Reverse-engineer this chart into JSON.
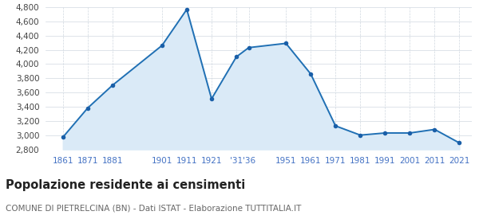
{
  "years": [
    1861,
    1871,
    1881,
    1901,
    1911,
    1921,
    1931,
    1936,
    1951,
    1961,
    1971,
    1981,
    1991,
    2001,
    2011,
    2021
  ],
  "population": [
    2971,
    3381,
    3701,
    4261,
    4768,
    3511,
    4101,
    4231,
    4291,
    3861,
    3131,
    3001,
    3031,
    3031,
    3081,
    2891
  ],
  "x_tick_positions": [
    1861,
    1871,
    1881,
    1901,
    1911,
    1921,
    1931,
    1936,
    1951,
    1961,
    1971,
    1981,
    1991,
    2001,
    2011,
    2021
  ],
  "x_tick_labels": [
    "1861",
    "1871",
    "1881",
    "1901",
    "1911",
    "1921",
    "'31",
    "'36",
    "1951",
    "1961",
    "1971",
    "1981",
    "1991",
    "2001",
    "2011",
    "2021"
  ],
  "line_color": "#2070b4",
  "fill_color": "#daeaf7",
  "marker_color": "#1a5fa8",
  "grid_color": "#d0d8e0",
  "background_color": "#ffffff",
  "ylim": [
    2800,
    4800
  ],
  "yticks": [
    2800,
    3000,
    3200,
    3400,
    3600,
    3800,
    4000,
    4200,
    4400,
    4600,
    4800
  ],
  "xlim_left": 1854,
  "xlim_right": 2026,
  "title": "Popolazione residente ai censimenti",
  "subtitle": "COMUNE DI PIETRELCINA (BN) - Dati ISTAT - Elaborazione TUTTITALIA.IT",
  "title_fontsize": 10.5,
  "subtitle_fontsize": 7.5,
  "tick_fontsize": 7.5,
  "tick_color": "#4472c4"
}
